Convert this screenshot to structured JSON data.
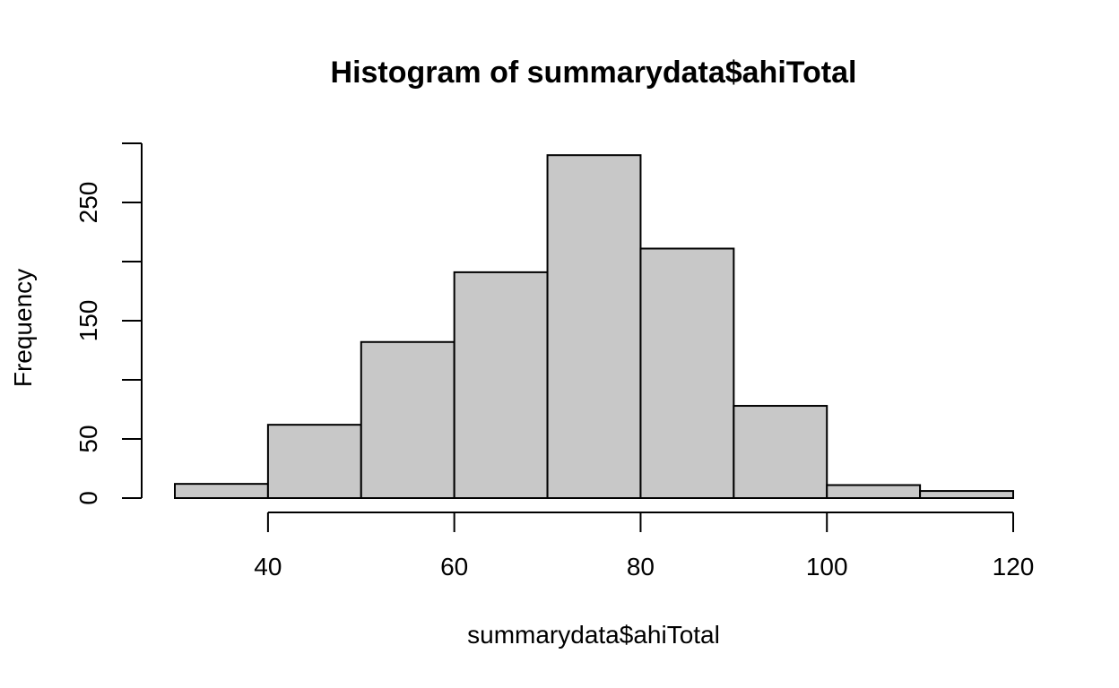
{
  "chart_data": {
    "type": "bar",
    "title": "Histogram of summarydata$ahiTotal",
    "xlabel": "summarydata$ahiTotal",
    "ylabel": "Frequency",
    "bins": [
      {
        "start": 30,
        "end": 40,
        "count": 12
      },
      {
        "start": 40,
        "end": 50,
        "count": 62
      },
      {
        "start": 50,
        "end": 60,
        "count": 132
      },
      {
        "start": 60,
        "end": 70,
        "count": 191
      },
      {
        "start": 70,
        "end": 80,
        "count": 290
      },
      {
        "start": 80,
        "end": 90,
        "count": 211
      },
      {
        "start": 90,
        "end": 100,
        "count": 78
      },
      {
        "start": 100,
        "end": 110,
        "count": 11
      },
      {
        "start": 110,
        "end": 120,
        "count": 6
      }
    ],
    "xlim": [
      30,
      120
    ],
    "ylim": [
      0,
      300
    ],
    "x_ticks": [
      40,
      60,
      80,
      100,
      120
    ],
    "y_ticks": [
      0,
      50,
      100,
      150,
      200,
      250,
      300
    ],
    "y_tick_labels": [
      "0",
      "50",
      "",
      "150",
      "",
      "250",
      ""
    ],
    "bar_color": "#c8c8c8",
    "grid": false
  }
}
